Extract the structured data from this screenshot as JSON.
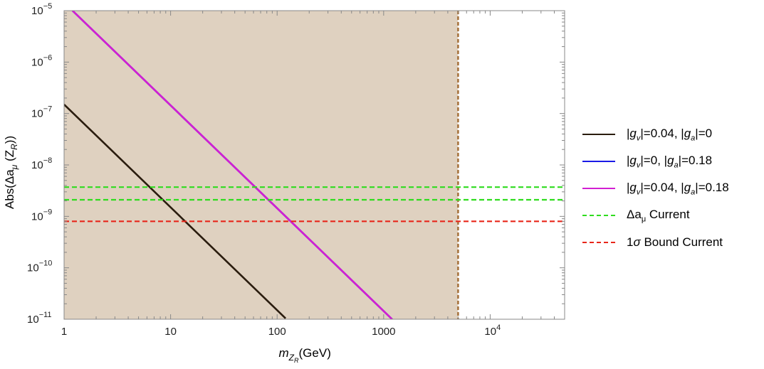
{
  "chart_data": {
    "type": "line",
    "xscale": "log",
    "yscale": "log",
    "xlim": [
      1,
      50000
    ],
    "ylim": [
      1e-11,
      1e-05
    ],
    "xlabel": "m_{Z_R}(GeV)",
    "ylabel": "Abs(Δa_μ (Z_R))",
    "grid": false,
    "legend_position": "right",
    "x_ticks": [
      {
        "value": 1,
        "label": "1"
      },
      {
        "value": 10,
        "label": "10"
      },
      {
        "value": 100,
        "label": "100"
      },
      {
        "value": 1000,
        "label": "1000"
      },
      {
        "value": 10000,
        "label": "10",
        "sup": "4"
      }
    ],
    "y_ticks": [
      {
        "value": 1e-11,
        "label": "10",
        "sup": "−11"
      },
      {
        "value": 1e-10,
        "label": "10",
        "sup": "−10"
      },
      {
        "value": 1e-09,
        "label": "10",
        "sup": "−9"
      },
      {
        "value": 1e-08,
        "label": "10",
        "sup": "−8"
      },
      {
        "value": 1e-07,
        "label": "10",
        "sup": "−7"
      },
      {
        "value": 1e-06,
        "label": "10",
        "sup": "−6"
      },
      {
        "value": 1e-05,
        "label": "10",
        "sup": "−5"
      }
    ],
    "excluded_region": {
      "x": [
        1,
        5000
      ],
      "color": "#dfd1c0",
      "boundary_color": "#a5703a"
    },
    "series": [
      {
        "name": "|g_v|=0.04, |g_a|=0",
        "color": "#2a1c0e",
        "style": "solid",
        "x": [
          1,
          120
        ],
        "y": [
          1.5e-07,
          1.04e-11
        ]
      },
      {
        "name": "|g_v|=0, |g_a|=0.18",
        "color": "#1a1ae6",
        "style": "solid",
        "x": [
          1.2,
          1200
        ],
        "y": [
          1e-05,
          1e-11
        ]
      },
      {
        "name": "|g_v|=0.04, |g_a|=0.18",
        "color": "#d21fd2",
        "style": "solid",
        "x": [
          1.2,
          1200
        ],
        "y": [
          1e-05,
          1e-11
        ]
      },
      {
        "name": "Δa_μ Current",
        "color": "#2fdc1e",
        "style": "dashed",
        "x": [
          1,
          50000
        ],
        "y": [
          3.7e-09,
          3.7e-09
        ]
      },
      {
        "name": "Δa_μ Current",
        "color": "#2fdc1e",
        "style": "dashed",
        "legend": false,
        "x": [
          1,
          50000
        ],
        "y": [
          2.1e-09,
          2.1e-09
        ]
      },
      {
        "name": "1σ Bound Current",
        "color": "#e8261a",
        "style": "dashed",
        "x": [
          1,
          50000
        ],
        "y": [
          8e-10,
          8e-10
        ]
      }
    ]
  }
}
